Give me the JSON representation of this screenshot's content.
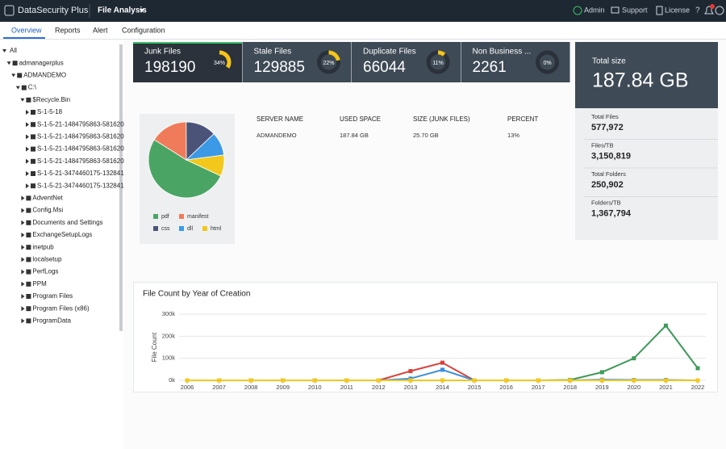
{
  "header": {
    "brand": "DataSecurity Plus",
    "module": "File Analysis",
    "links": [
      "Admin",
      "Support",
      "License",
      "?"
    ]
  },
  "tabs": [
    "Overview",
    "Reports",
    "Alert",
    "Configuration"
  ],
  "tree": [
    "All",
    "admanagerplus",
    "ADMANDEMO",
    "C:\\",
    "$Recycle.Bin",
    "S-1-5-18",
    "S-1-5-21-1484795863-581620",
    "S-1-5-21-1484795863-581620",
    "S-1-5-21-1484795863-581620",
    "S-1-5-21-1484795863-581620",
    "S-1-5-21-3474460175-132841",
    "S-1-5-21-3474460175-132841",
    "AdventNet",
    "Config.Msi",
    "Documents and Settings",
    "ExchangeSetupLogs",
    "inetpub",
    "localsetup",
    "PerfLogs",
    "PPM",
    "Program Files",
    "Program Files (x86)",
    "ProgramData"
  ],
  "cards": [
    {
      "label": "Junk Files",
      "count": 198190,
      "percent": {
        "value": 34,
        "label": "34%"
      }
    },
    {
      "label": "Stale Files",
      "count": 129885,
      "percent": {
        "value": 22,
        "label": "22%"
      }
    },
    {
      "label": "Duplicate Files",
      "count": 66044,
      "percent": {
        "value": 11,
        "label": "11%"
      }
    },
    {
      "label": "Non Business ...",
      "count": 2261,
      "percent": {
        "value": 0,
        "label": "0%"
      }
    }
  ],
  "total": {
    "label": "Total size",
    "value": "187.84 GB",
    "stats": [
      {
        "label": "Total Files",
        "value": "577,972"
      },
      {
        "label": "Files/TB",
        "value": "3,150,819"
      },
      {
        "label": "Total Folders",
        "value": "250,902"
      },
      {
        "label": "Folders/TB",
        "value": "1,367,794"
      }
    ]
  },
  "table": {
    "headers": [
      "SERVER NAME",
      "USED SPACE",
      "SIZE (JUNK FILES)",
      "PERCENT"
    ],
    "rows": [
      [
        "ADMANDEMO",
        "187.84 GB",
        "25.70 GB",
        "13%"
      ]
    ]
  },
  "chart_data": [
    {
      "type": "pie",
      "categories": [
        "pdf",
        "manifest",
        "css",
        "dll",
        "html"
      ],
      "values": [
        52,
        16,
        13,
        10,
        9
      ],
      "colors": [
        "#4aa564",
        "#f07b5a",
        "#4b5478",
        "#3b99e6",
        "#f2c81c"
      ]
    },
    {
      "type": "line",
      "title": "File Count by Year of Creation",
      "y_label": "File Count",
      "x": [
        2006,
        2007,
        2008,
        2009,
        2010,
        2011,
        2012,
        2013,
        2014,
        2015,
        2016,
        2017,
        2018,
        2019,
        2020,
        2021,
        2022
      ],
      "xlim": [
        2006,
        2022
      ],
      "ylim": [
        0,
        300000
      ],
      "yticks": [
        {
          "value": 0,
          "label": "0k"
        },
        {
          "value": 100000,
          "label": "100k"
        },
        {
          "value": 200000,
          "label": "200k"
        },
        {
          "value": 300000,
          "label": "300k"
        }
      ],
      "grid": true,
      "series": [
        {
          "color": "#3d9a58",
          "values": [
            0,
            0,
            0,
            0,
            0,
            0,
            0,
            0,
            0,
            0,
            0,
            0,
            2000,
            37000,
            100000,
            248000,
            55000
          ]
        },
        {
          "color": "#d9413a",
          "values": [
            0,
            0,
            0,
            0,
            0,
            0,
            0,
            42000,
            80000,
            0,
            0,
            0,
            0,
            0,
            0,
            0,
            0
          ]
        },
        {
          "color": "#3b8fdc",
          "values": [
            0,
            0,
            0,
            0,
            0,
            0,
            0,
            8000,
            48000,
            0,
            0,
            0,
            0,
            3000,
            2000,
            2000,
            0
          ]
        },
        {
          "color": "#f2c81c",
          "values": [
            0,
            0,
            0,
            0,
            0,
            0,
            0,
            0,
            0,
            0,
            0,
            0,
            0,
            0,
            0,
            0,
            0
          ]
        }
      ]
    }
  ]
}
